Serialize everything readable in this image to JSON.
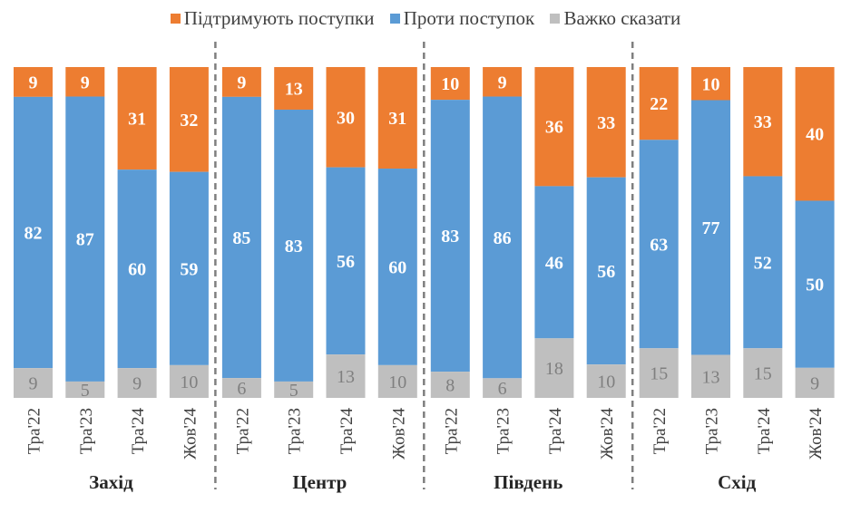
{
  "chart_data": {
    "type": "bar",
    "stacked": true,
    "title": "",
    "legend": {
      "position": "top",
      "entries": [
        "Підтримують поступки",
        "Проти поступок",
        "Важко сказати"
      ]
    },
    "colors": {
      "support": "#ED7D31",
      "against": "#5B9BD5",
      "unsure": "#BFBFBF"
    },
    "groups": [
      {
        "name": "Захід",
        "categories": [
          "Тра'22",
          "Тра'23",
          "Тра'24",
          "Жов'24"
        ]
      },
      {
        "name": "Центр",
        "categories": [
          "Тра'22",
          "Тра'23",
          "Тра'24",
          "Жов'24"
        ]
      },
      {
        "name": "Південь",
        "categories": [
          "Тра'22",
          "Тра'23",
          "Тра'24",
          "Жов'24"
        ]
      },
      {
        "name": "Схід",
        "categories": [
          "Тра'22",
          "Тра'23",
          "Тра'24",
          "Жов'24"
        ]
      }
    ],
    "series": [
      {
        "name": "Підтримують поступки",
        "values": [
          9,
          9,
          31,
          32,
          9,
          13,
          30,
          31,
          10,
          9,
          36,
          33,
          22,
          10,
          33,
          40
        ]
      },
      {
        "name": "Проти поступок",
        "values": [
          82,
          87,
          60,
          59,
          85,
          83,
          56,
          60,
          83,
          86,
          46,
          56,
          63,
          77,
          52,
          50
        ]
      },
      {
        "name": "Важко сказати",
        "values": [
          9,
          5,
          9,
          10,
          6,
          5,
          13,
          10,
          8,
          6,
          18,
          10,
          15,
          13,
          15,
          9
        ]
      }
    ],
    "ylim": [
      0,
      100
    ],
    "grid": false,
    "group_separators": "dashed"
  }
}
